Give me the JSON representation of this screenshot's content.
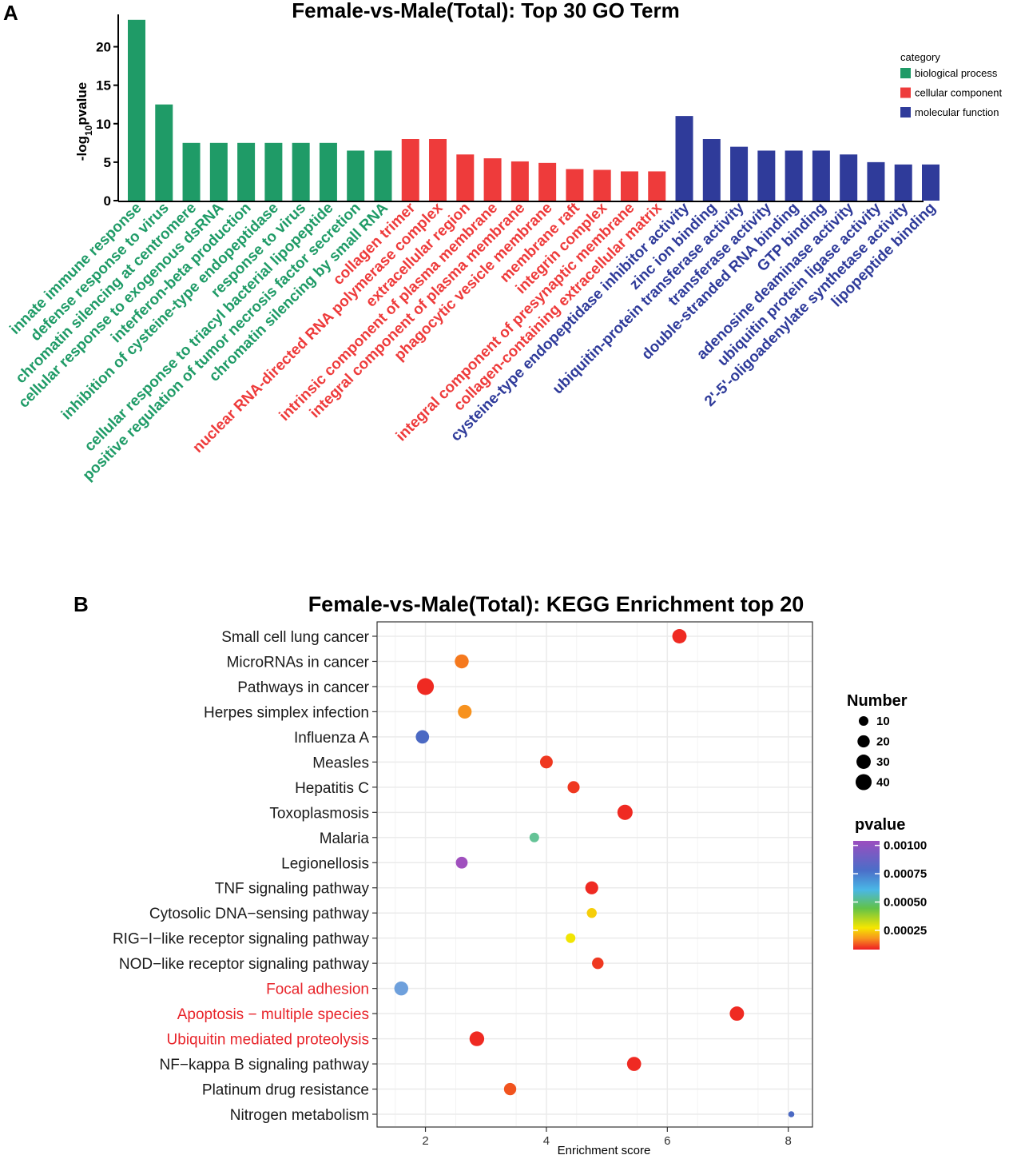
{
  "panel_a_letter": "A",
  "panel_b_letter": "B",
  "colors": {
    "biological_process": "#1f9b67",
    "cellular_component": "#ee3b3b",
    "molecular_function": "#2f3b9a",
    "highlight_red": "#e8242a",
    "axis": "#000000",
    "grid": "#ebebeb"
  },
  "chart_data": [
    {
      "type": "bar",
      "title": "Female-vs-Male(Total): Top 30 GO Term",
      "ylabel": "-log10pvalue",
      "ylabel_parts": [
        "-log",
        "10",
        "pvalue"
      ],
      "ylim": [
        0,
        24
      ],
      "yticks": [
        0,
        5,
        10,
        15,
        20
      ],
      "legend": {
        "title": "category",
        "position": "top-right",
        "entries": [
          {
            "key": "biological_process",
            "label": "biological process"
          },
          {
            "key": "cellular_component",
            "label": "cellular component"
          },
          {
            "key": "molecular_function",
            "label": "molecular function"
          }
        ]
      },
      "categories": [
        "innate immune response",
        "defense response to virus",
        "chromatin silencing at centromere",
        "cellular response to exogenous dsRNA",
        "interferon-beta production",
        "inhibition of cysteine-type endopeptidase",
        "response to virus",
        "cellular response to triacyl bacterial lipopeptide",
        "positive regulation of tumor necrosis factor secretion",
        "chromatin silencing by small RNA",
        "collagen trimer",
        "nuclear RNA-directed RNA polymerase complex",
        "extracellular region",
        "intrinsic component of plasma membrane",
        "integral component of plasma membrane",
        "phagocytic vesicle membrane",
        "membrane raft",
        "integrin complex",
        "integral component of presynaptic membrane",
        "collagen-containing extracellular matrix",
        "cysteine-type endopeptidase inhibitor activity",
        "zinc ion binding",
        "ubiquitin-protein transferase activity",
        "transferase activity",
        "double-stranded RNA binding",
        "GTP binding",
        "adenosine deaminase activity",
        "ubiquitin protein ligase activity",
        "2'-5'-oligoadenylate synthetase activity",
        "lipopeptide binding"
      ],
      "values": [
        23.5,
        12.5,
        7.5,
        7.5,
        7.5,
        7.5,
        7.5,
        7.5,
        6.5,
        6.5,
        8.0,
        8.0,
        6.0,
        5.5,
        5.1,
        4.9,
        4.1,
        4.0,
        3.8,
        3.8,
        11.0,
        8.0,
        7.0,
        6.5,
        6.5,
        6.5,
        6.0,
        5.0,
        4.7,
        4.7
      ],
      "groups": [
        "biological_process",
        "biological_process",
        "biological_process",
        "biological_process",
        "biological_process",
        "biological_process",
        "biological_process",
        "biological_process",
        "biological_process",
        "biological_process",
        "cellular_component",
        "cellular_component",
        "cellular_component",
        "cellular_component",
        "cellular_component",
        "cellular_component",
        "cellular_component",
        "cellular_component",
        "cellular_component",
        "cellular_component",
        "molecular_function",
        "molecular_function",
        "molecular_function",
        "molecular_function",
        "molecular_function",
        "molecular_function",
        "molecular_function",
        "molecular_function",
        "molecular_function",
        "molecular_function"
      ]
    },
    {
      "type": "scatter",
      "title": "Female-vs-Male(Total): KEGG Enrichment top 20",
      "xlabel": "Enrichment score",
      "ylabel": "",
      "xlim": [
        1.2,
        8.4
      ],
      "xticks": [
        2,
        4,
        6,
        8
      ],
      "grid": true,
      "size_legend": {
        "title": "Number",
        "position": "right",
        "values": [
          10,
          20,
          30,
          40
        ]
      },
      "color_legend": {
        "title": "pvalue",
        "position": "right",
        "ticks": [
          "0.00100",
          "0.00075",
          "0.00050",
          "0.00025"
        ],
        "tick_values": [
          0.001,
          0.00075,
          0.0005,
          0.00025
        ],
        "range": [
          8e-05,
          0.00104
        ]
      },
      "points": [
        {
          "term": "Small cell lung cancer",
          "x": 6.2,
          "number": 30,
          "pvalue": 0.0001,
          "highlight": false
        },
        {
          "term": "MicroRNAs in cancer ",
          "x": 2.6,
          "number": 28,
          "pvalue": 0.00018,
          "highlight": false
        },
        {
          "term": "Pathways in cancer",
          "x": 2.0,
          "number": 45,
          "pvalue": 0.0001,
          "highlight": false
        },
        {
          "term": "Herpes simplex infection",
          "x": 2.65,
          "number": 27,
          "pvalue": 0.0002,
          "highlight": false
        },
        {
          "term": "Influenza A",
          "x": 1.95,
          "number": 25,
          "pvalue": 0.0008,
          "highlight": false
        },
        {
          "term": "Measles",
          "x": 4.0,
          "number": 22,
          "pvalue": 0.00012,
          "highlight": false
        },
        {
          "term": "Hepatitis C",
          "x": 4.45,
          "number": 19,
          "pvalue": 0.00012,
          "highlight": false
        },
        {
          "term": "Toxoplasmosis",
          "x": 5.3,
          "number": 35,
          "pvalue": 0.0001,
          "highlight": false
        },
        {
          "term": "Malaria",
          "x": 3.8,
          "number": 10,
          "pvalue": 0.0006,
          "highlight": false
        },
        {
          "term": "Legionellosis",
          "x": 2.6,
          "number": 18,
          "pvalue": 0.00095,
          "highlight": false
        },
        {
          "term": "TNF signaling pathway",
          "x": 4.75,
          "number": 23,
          "pvalue": 0.0001,
          "highlight": false
        },
        {
          "term": "Cytosolic DNA−sensing pathway",
          "x": 4.75,
          "number": 11,
          "pvalue": 0.00025,
          "highlight": false
        },
        {
          "term": "RIG−I−like receptor signaling pathway",
          "x": 4.4,
          "number": 10,
          "pvalue": 0.00028,
          "highlight": false
        },
        {
          "term": "NOD−like receptor signaling pathway",
          "x": 4.85,
          "number": 17,
          "pvalue": 0.00012,
          "highlight": false
        },
        {
          "term": "Focal adhesion",
          "x": 1.6,
          "number": 28,
          "pvalue": 0.0007,
          "highlight": true
        },
        {
          "term": "Apoptosis − multiple species",
          "x": 7.15,
          "number": 30,
          "pvalue": 0.0001,
          "highlight": true
        },
        {
          "term": "Ubiquitin mediated proteolysis",
          "x": 2.85,
          "number": 32,
          "pvalue": 0.0001,
          "highlight": true
        },
        {
          "term": "NF−kappa B signaling pathway",
          "x": 5.45,
          "number": 29,
          "pvalue": 0.0001,
          "highlight": false
        },
        {
          "term": "Platinum drug resistance",
          "x": 3.4,
          "number": 20,
          "pvalue": 0.00015,
          "highlight": false
        },
        {
          "term": "Nitrogen metabolism",
          "x": 8.05,
          "number": 2,
          "pvalue": 0.0008,
          "highlight": false
        }
      ]
    }
  ]
}
